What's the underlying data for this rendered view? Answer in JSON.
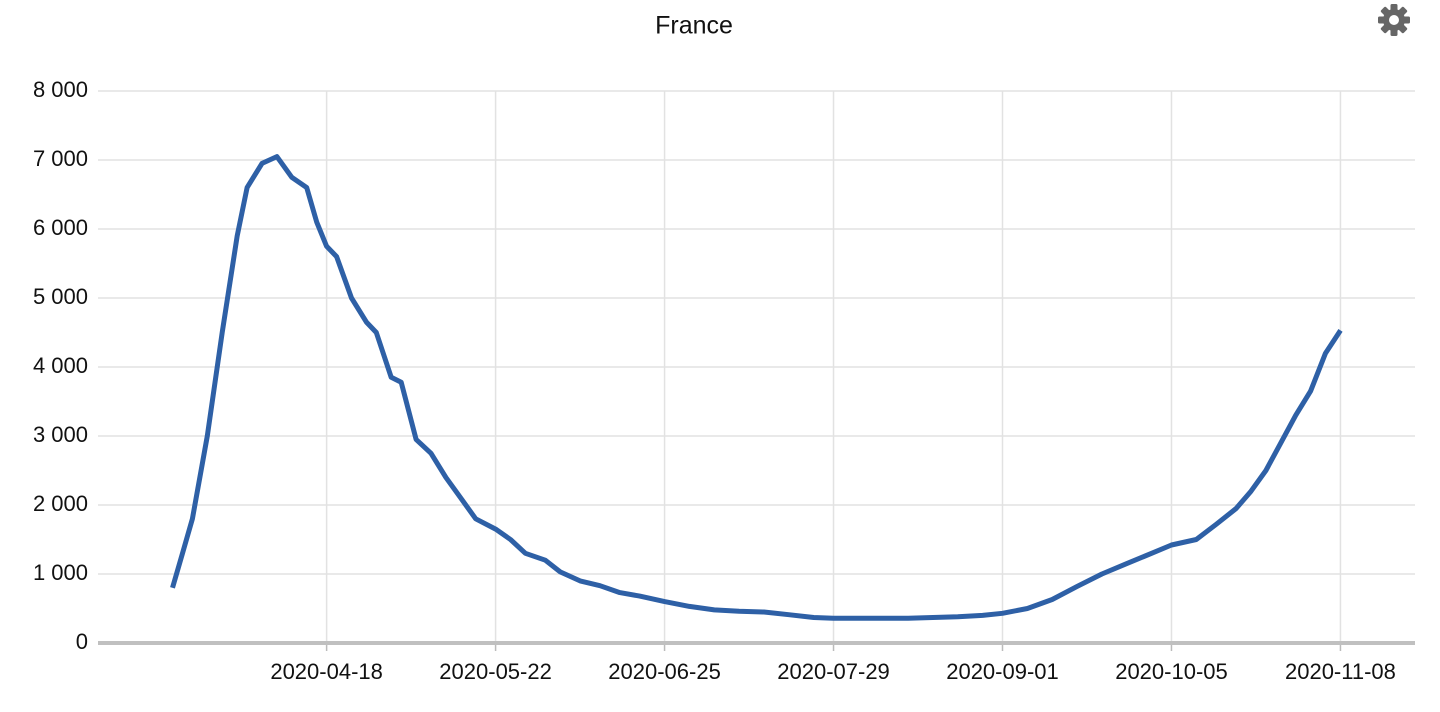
{
  "chart_data": {
    "type": "line",
    "title": "France",
    "x": [
      "2020-03-18",
      "2020-03-20",
      "2020-03-22",
      "2020-03-25",
      "2020-03-28",
      "2020-03-31",
      "2020-04-02",
      "2020-04-05",
      "2020-04-08",
      "2020-04-11",
      "2020-04-14",
      "2020-04-16",
      "2020-04-18",
      "2020-04-20",
      "2020-04-23",
      "2020-04-26",
      "2020-04-28",
      "2020-05-01",
      "2020-05-03",
      "2020-05-06",
      "2020-05-09",
      "2020-05-12",
      "2020-05-15",
      "2020-05-18",
      "2020-05-22",
      "2020-05-25",
      "2020-05-28",
      "2020-06-01",
      "2020-06-04",
      "2020-06-08",
      "2020-06-12",
      "2020-06-16",
      "2020-06-20",
      "2020-06-25",
      "2020-06-30",
      "2020-07-05",
      "2020-07-10",
      "2020-07-15",
      "2020-07-20",
      "2020-07-25",
      "2020-07-29",
      "2020-08-03",
      "2020-08-08",
      "2020-08-13",
      "2020-08-18",
      "2020-08-23",
      "2020-08-28",
      "2020-09-01",
      "2020-09-06",
      "2020-09-11",
      "2020-09-16",
      "2020-09-21",
      "2020-09-26",
      "2020-10-01",
      "2020-10-05",
      "2020-10-10",
      "2020-10-14",
      "2020-10-18",
      "2020-10-21",
      "2020-10-24",
      "2020-10-27",
      "2020-10-30",
      "2020-11-02",
      "2020-11-05",
      "2020-11-08"
    ],
    "series": [
      {
        "color": "#2e60a6",
        "values": [
          800,
          1300,
          1800,
          3000,
          4500,
          5900,
          6600,
          6950,
          7050,
          6750,
          6600,
          6100,
          5750,
          5600,
          5000,
          4650,
          4500,
          3850,
          3780,
          2950,
          2750,
          2400,
          2100,
          1800,
          1650,
          1500,
          1300,
          1200,
          1030,
          900,
          830,
          730,
          680,
          600,
          530,
          480,
          460,
          450,
          410,
          370,
          360,
          360,
          360,
          360,
          370,
          380,
          400,
          430,
          500,
          630,
          820,
          1000,
          1150,
          1300,
          1420,
          1500,
          1720,
          1950,
          2200,
          2500,
          2900,
          3300,
          3650,
          4200,
          4530
        ]
      }
    ],
    "xlim": [
      "2020-03-03",
      "2020-11-23"
    ],
    "xticks": [
      "2020-04-18",
      "2020-05-22",
      "2020-06-25",
      "2020-07-29",
      "2020-09-01",
      "2020-10-05",
      "2020-11-08"
    ],
    "ylim": [
      0,
      8000
    ],
    "yticks": [
      0,
      {
        "value": 1000,
        "label": "1 000"
      },
      {
        "value": 2000,
        "label": "2 000"
      },
      {
        "value": 3000,
        "label": "3 000"
      },
      {
        "value": 4000,
        "label": "4 000"
      },
      {
        "value": 5000,
        "label": "5 000"
      },
      {
        "value": 6000,
        "label": "6 000"
      },
      {
        "value": 7000,
        "label": "7 000"
      },
      {
        "value": 8000,
        "label": "8 000"
      }
    ],
    "grid": true
  }
}
